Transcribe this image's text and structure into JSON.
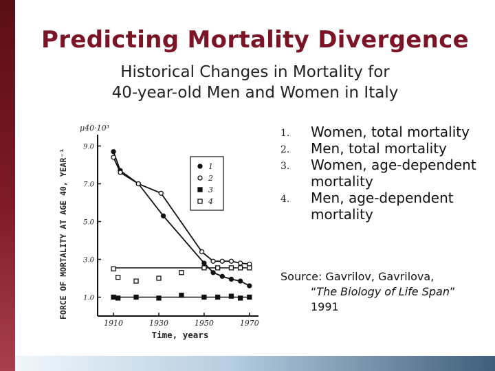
{
  "slide": {
    "title": "Predicting Mortality Divergence",
    "subtitle_line1": "Historical Changes in Mortality for",
    "subtitle_line2": "40-year-old Men and Women in Italy",
    "accent_color": "#7b1424"
  },
  "legend": {
    "items": [
      {
        "number": "1.",
        "label": "Women, total mortality"
      },
      {
        "number": "2.",
        "label": "Men, total mortality"
      },
      {
        "number": "3.",
        "label": "Women, age-dependent mortality"
      },
      {
        "number": "4.",
        "label": "Men, age-dependent mortality"
      }
    ]
  },
  "source": {
    "prefix": "Source: Gavrilov, Gavrilova,",
    "open_quote": "“",
    "book": "The Biology of Life Span",
    "close_quote": "”",
    "year": "1991"
  },
  "chart_data": {
    "type": "line",
    "title": "",
    "xlabel": "Time, years",
    "ylabel": "FORCE OF MORTALITY AT AGE 40, YEAR⁻¹",
    "y_unit_label": "μ40·10³",
    "xlim": [
      1903,
      1974
    ],
    "ylim": [
      0,
      9.6
    ],
    "x_ticks": [
      1910,
      1930,
      1950,
      1970
    ],
    "x_tick_labels": [
      "1910",
      "1930",
      "1950",
      "1970"
    ],
    "y_ticks": [
      1.0,
      3.0,
      5.0,
      7.0,
      9.0
    ],
    "y_tick_labels": [
      "1.0",
      "3.0",
      "5.0",
      "7.0",
      "9.0"
    ],
    "legend_markers": [
      {
        "label": "1",
        "marker": "filled-circle"
      },
      {
        "label": "2",
        "marker": "open-circle"
      },
      {
        "label": "3",
        "marker": "filled-square"
      },
      {
        "label": "4",
        "marker": "open-square"
      }
    ],
    "series": [
      {
        "name": "1",
        "marker": "filled-circle",
        "x": [
          1910,
          1913,
          1921,
          1932,
          1950,
          1954,
          1958,
          1962,
          1966,
          1970
        ],
        "values": [
          8.7,
          7.7,
          7.0,
          5.3,
          2.8,
          2.3,
          2.1,
          1.95,
          1.85,
          1.6
        ]
      },
      {
        "name": "2",
        "marker": "open-circle",
        "x": [
          1910,
          1913,
          1921,
          1931,
          1949,
          1954,
          1958,
          1962,
          1966,
          1970
        ],
        "values": [
          8.4,
          7.6,
          7.0,
          6.5,
          3.4,
          2.9,
          2.9,
          2.9,
          2.8,
          2.75
        ]
      },
      {
        "name": "3",
        "marker": "filled-square",
        "x": [
          1910,
          1912,
          1920,
          1930,
          1940,
          1950,
          1956,
          1962,
          1966,
          1970
        ],
        "values": [
          1.0,
          0.95,
          1.0,
          0.95,
          1.1,
          1.0,
          1.0,
          1.05,
          0.95,
          1.0
        ]
      },
      {
        "name": "4",
        "marker": "open-square",
        "x": [
          1910,
          1912,
          1920,
          1930,
          1940,
          1950,
          1956,
          1962,
          1966,
          1970
        ],
        "values": [
          2.5,
          2.05,
          1.85,
          2.0,
          2.3,
          2.55,
          2.55,
          2.55,
          2.55,
          2.55
        ]
      }
    ],
    "reference_lines": [
      {
        "name": "age-dependent men level",
        "y": 2.55,
        "x_from": 1910,
        "x_to": 1971
      },
      {
        "name": "age-dependent women level",
        "y": 1.0,
        "x_from": 1910,
        "x_to": 1971
      }
    ]
  }
}
